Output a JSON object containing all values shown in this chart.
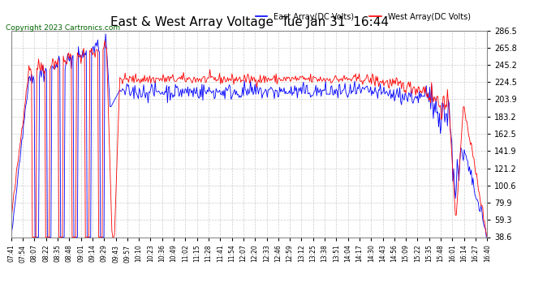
{
  "title": "East & West Array Voltage  Tue Jan 31  16:44",
  "copyright": "Copyright 2023 Cartronics.com",
  "legend_east": "East Array(DC Volts)",
  "legend_west": "West Array(DC Volts)",
  "east_color": "#0000ff",
  "west_color": "#ff0000",
  "bg_color": "#ffffff",
  "grid_color": "#cccccc",
  "yticks": [
    38.6,
    59.3,
    79.9,
    100.6,
    121.2,
    141.9,
    162.5,
    183.2,
    203.9,
    224.5,
    245.2,
    265.8,
    286.5
  ],
  "ymin": 38.6,
  "ymax": 286.5,
  "xtick_labels": [
    "07:41",
    "07:54",
    "08:07",
    "08:22",
    "08:35",
    "08:48",
    "09:01",
    "09:14",
    "09:29",
    "09:43",
    "09:57",
    "10:10",
    "10:23",
    "10:36",
    "10:49",
    "11:02",
    "11:15",
    "11:28",
    "11:41",
    "11:54",
    "12:07",
    "12:20",
    "12:33",
    "12:46",
    "12:59",
    "13:12",
    "13:25",
    "13:38",
    "13:51",
    "14:04",
    "14:17",
    "14:30",
    "14:43",
    "14:56",
    "15:09",
    "15:22",
    "15:35",
    "15:48",
    "16:01",
    "16:14",
    "16:27",
    "16:40"
  ]
}
